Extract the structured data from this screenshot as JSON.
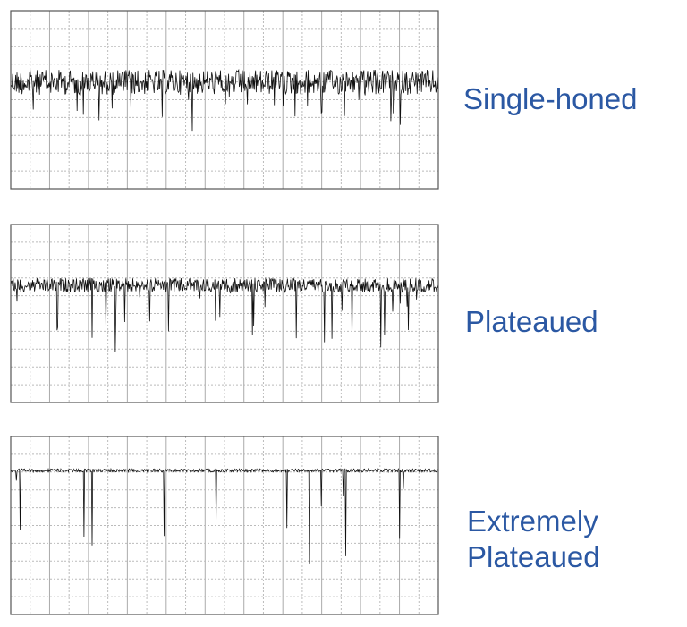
{
  "panels": [
    {
      "label": "Single-honed"
    },
    {
      "label": "Plateaued"
    },
    {
      "label_lines": [
        "Extremely",
        "Plateaued"
      ]
    }
  ]
}
